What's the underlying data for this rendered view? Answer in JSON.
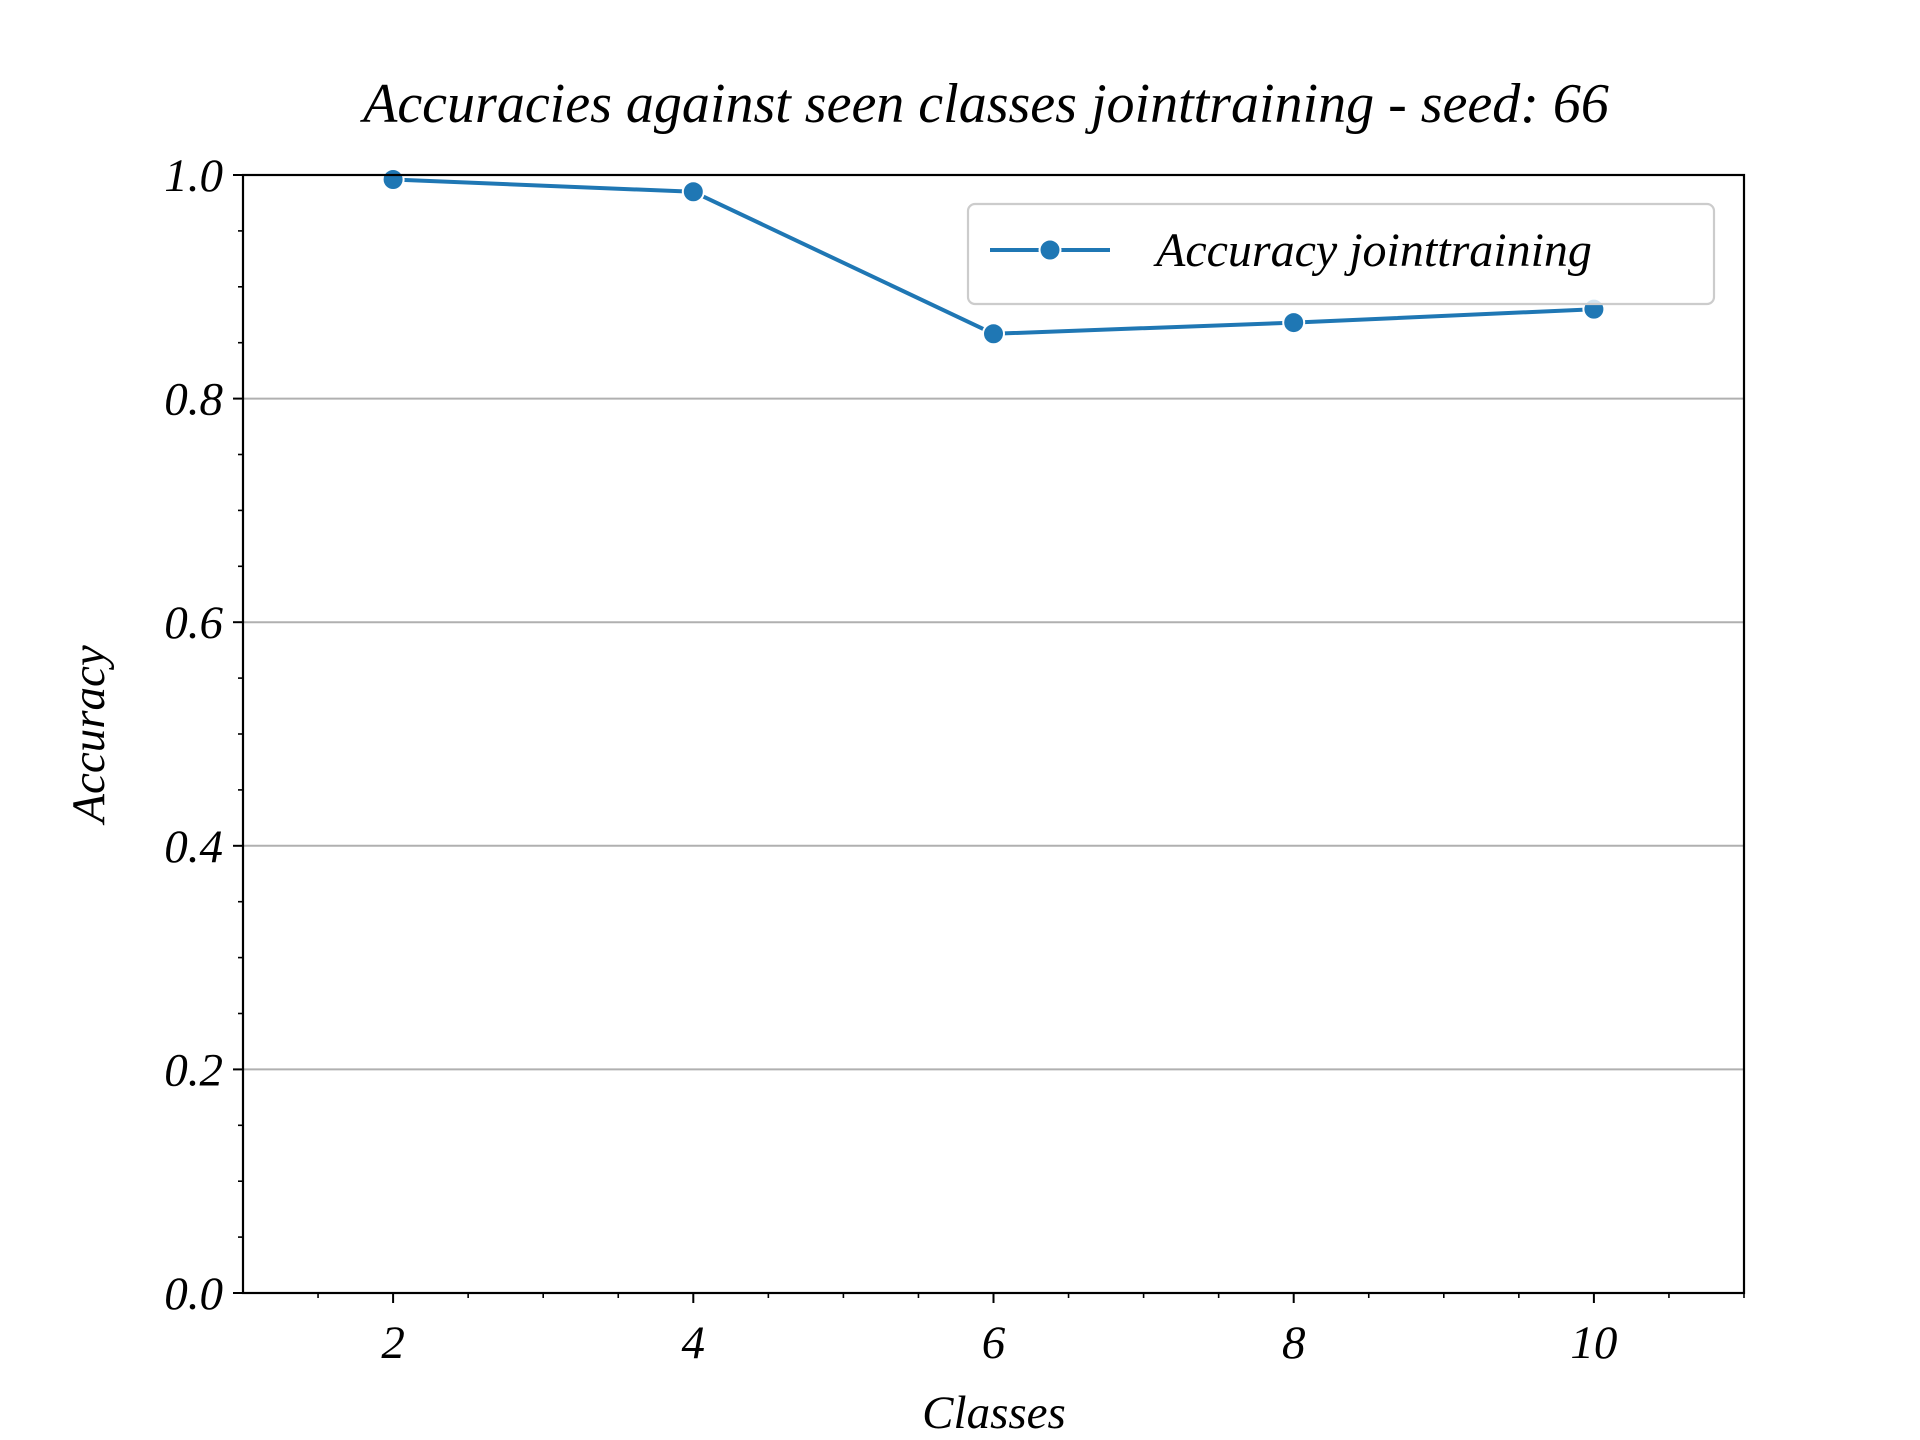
{
  "chart_data": {
    "type": "line",
    "title": "Accuracies against seen classes jointtraining - seed: 66",
    "xlabel": "Classes",
    "ylabel": "Accuracy",
    "xlim": [
      1,
      11
    ],
    "ylim": [
      0.0,
      1.0
    ],
    "x_ticks": [
      2,
      4,
      6,
      8,
      10
    ],
    "x_tick_labels": [
      "2",
      "4",
      "6",
      "8",
      "10"
    ],
    "x_minor_ticks": [
      1.5,
      2.5,
      3,
      3.5,
      4.5,
      5,
      5.5,
      6.5,
      7,
      7.5,
      8.5,
      9,
      9.5,
      10.5,
      11
    ],
    "y_ticks": [
      0.0,
      0.2,
      0.4,
      0.6,
      0.8,
      1.0
    ],
    "y_tick_labels": [
      "0.0",
      "0.2",
      "0.4",
      "0.6",
      "0.8",
      "1.0"
    ],
    "y_minor_ticks": [
      0.05,
      0.1,
      0.15,
      0.25,
      0.3,
      0.35,
      0.45,
      0.5,
      0.55,
      0.65,
      0.7,
      0.75,
      0.85,
      0.9,
      0.95
    ],
    "grid": "horizontal",
    "legend_position": "top-right",
    "series": [
      {
        "name": "Accuracy jointtraining",
        "color": "#1f77b4",
        "marker": "circle",
        "x": [
          2,
          4,
          6,
          8,
          10
        ],
        "y": [
          0.996,
          0.985,
          0.858,
          0.868,
          0.88
        ]
      }
    ]
  }
}
